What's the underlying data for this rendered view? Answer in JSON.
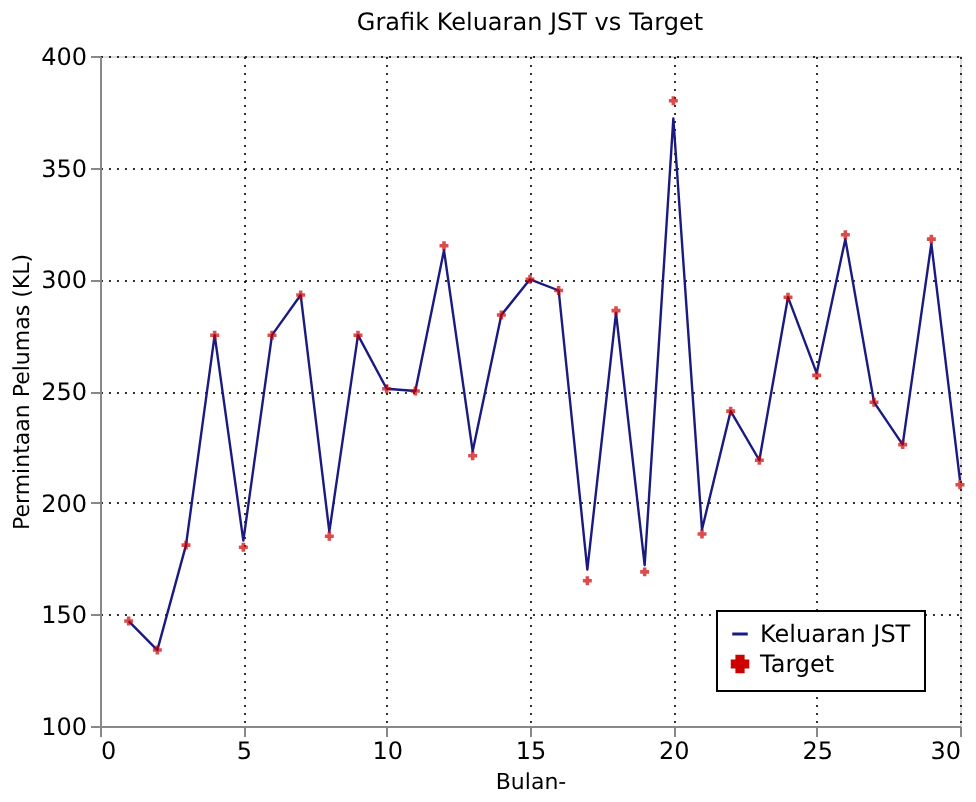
{
  "chart_data": {
    "type": "line",
    "title": "Grafik Keluaran JST vs Target",
    "xlabel": "Bulan-",
    "ylabel": "Permintaan Pelumas (KL)",
    "x": [
      1,
      2,
      3,
      4,
      5,
      6,
      7,
      8,
      9,
      10,
      11,
      12,
      13,
      14,
      15,
      16,
      17,
      18,
      19,
      20,
      21,
      22,
      23,
      24,
      25,
      26,
      27,
      28,
      29,
      30
    ],
    "series": [
      {
        "name": "Keluaran JST",
        "marker": "none",
        "line_style": "solid",
        "color": "#1a1a80",
        "values": [
          147,
          134,
          181,
          275,
          183,
          275,
          293,
          187,
          275,
          251,
          250,
          313,
          223,
          284,
          300,
          295,
          170,
          285,
          172,
          372,
          188,
          241,
          219,
          292,
          258,
          318,
          245,
          226,
          316,
          210
        ]
      },
      {
        "name": "Target",
        "type": "scatter",
        "marker": "cross",
        "color": "#cc0000",
        "values": [
          147,
          134,
          181,
          275,
          180,
          275,
          293,
          185,
          275,
          251,
          250,
          315,
          221,
          284,
          300,
          295,
          165,
          286,
          169,
          380,
          186,
          241,
          219,
          292,
          257,
          320,
          245,
          226,
          318,
          208
        ]
      }
    ],
    "xlim": [
      0,
      30
    ],
    "xticks": [
      0,
      5,
      10,
      15,
      20,
      25,
      30
    ],
    "ylim": [
      100,
      400
    ],
    "yticks": [
      100,
      150,
      200,
      250,
      300,
      350,
      400
    ],
    "grid": true,
    "legend": "bottom right"
  }
}
